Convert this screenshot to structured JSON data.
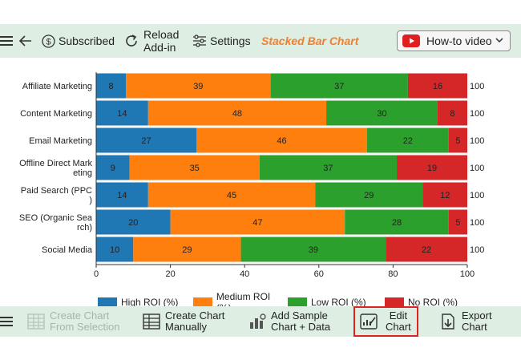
{
  "toolbar": {
    "subscribed_label": "Subscribed",
    "reload_label_line1": "Reload",
    "reload_label_line2": "Add-in",
    "settings_label": "Settings",
    "title": "Stacked Bar Chart",
    "howto_label": "How-to video"
  },
  "bottom_toolbar": {
    "create_from_selection_1": "Create Chart",
    "create_from_selection_2": "From Selection",
    "create_manually_1": "Create Chart",
    "create_manually_2": "Manually",
    "add_sample_1": "Add Sample",
    "add_sample_2": "Chart + Data",
    "edit_chart_1": "Edit",
    "edit_chart_2": "Chart",
    "export_chart_1": "Export",
    "export_chart_2": "Chart"
  },
  "colors": {
    "high": "#1f77b4",
    "medium": "#ff7f0e",
    "low": "#2ca02c",
    "none": "#d62728",
    "accent": "#f07f2f",
    "toolbar_bg": "#dfeee2"
  },
  "chart_data": {
    "type": "bar",
    "orientation": "horizontal",
    "stacked": true,
    "categories": [
      [
        "Affiliate Marketing"
      ],
      [
        "Content Marketing"
      ],
      [
        "Email Marketing"
      ],
      [
        "Offline Direct Mark",
        "eting"
      ],
      [
        "Paid Search (PPC",
        ")"
      ],
      [
        "SEO (Organic Sea",
        "rch)"
      ],
      [
        "Social Media"
      ]
    ],
    "series": [
      {
        "name": "High ROI (%)",
        "values": [
          8,
          14,
          27,
          9,
          14,
          20,
          10
        ]
      },
      {
        "name": "Medium ROI (%)",
        "values": [
          39,
          48,
          46,
          35,
          45,
          47,
          29
        ]
      },
      {
        "name": "Low ROI (%)",
        "values": [
          37,
          30,
          22,
          37,
          29,
          28,
          39
        ]
      },
      {
        "name": "No ROI (%)",
        "values": [
          16,
          8,
          5,
          19,
          12,
          5,
          22
        ]
      }
    ],
    "totals": [
      100,
      100,
      100,
      100,
      100,
      100,
      100
    ],
    "xlim": [
      0,
      100
    ],
    "xticks": [
      0,
      20,
      40,
      60,
      80,
      100
    ],
    "legend_position": "bottom",
    "grid": false
  }
}
